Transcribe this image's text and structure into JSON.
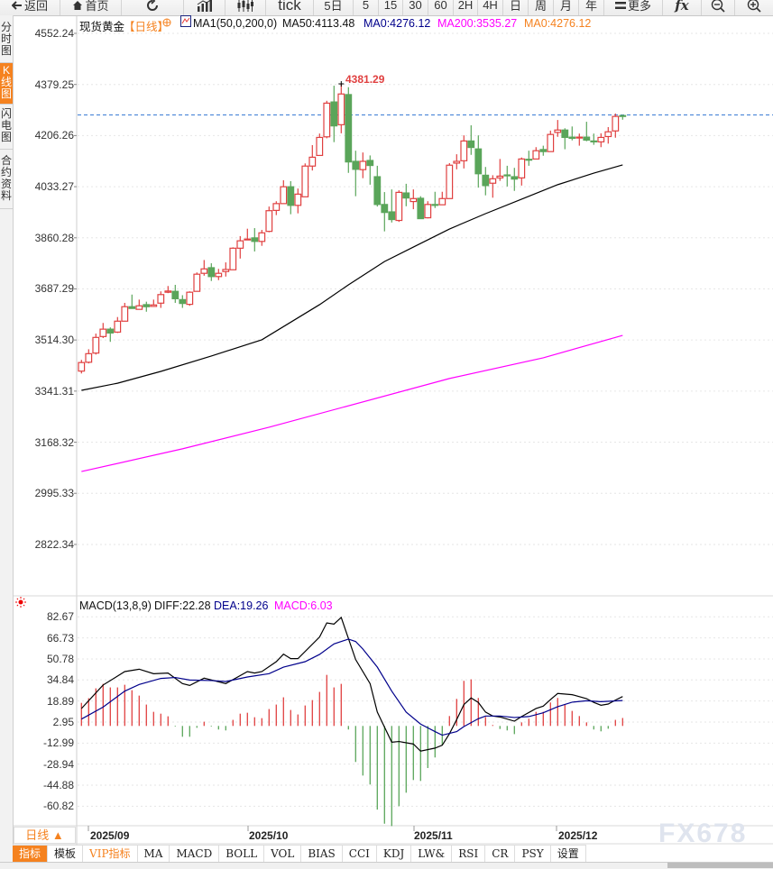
{
  "toolbar": {
    "back": "返回",
    "home": "首页",
    "tick": "tick",
    "periods": [
      "5日",
      "5",
      "15",
      "30",
      "60",
      "2H",
      "4H",
      "日",
      "周",
      "月",
      "年"
    ],
    "more": "更多",
    "fx": "fx"
  },
  "sidebar": [
    "分时图",
    "K线图",
    "闪电图",
    "合约资料"
  ],
  "header": {
    "symbol": "现货黄金",
    "period": "【日线】",
    "ma_params": "MA1(50,0,200,0)",
    "ma50": "MA50:4113.48",
    "ma0_a": "MA0:4276.12",
    "ma200": "MA200:3535.27",
    "ma0_b": "MA0:4276.12"
  },
  "max_label": "4381.29",
  "price_axis": [
    "4552.24",
    "4379.25",
    "4206.26",
    "4033.27",
    "3860.28",
    "3687.29",
    "3514.30",
    "3341.31",
    "3168.32",
    "2995.33",
    "2822.34"
  ],
  "macd_header": {
    "params": "MACD(13,8,9)",
    "diff": "DIFF:22.28",
    "dea": "DEA:19.26",
    "macd": "MACD:6.03"
  },
  "macd_axis": [
    "82.67",
    "66.73",
    "50.78",
    "34.84",
    "18.89",
    "2.95",
    "-12.99",
    "-28.94",
    "-44.88",
    "-60.82"
  ],
  "date_axis": [
    "2025/09",
    "2025/10",
    "2025/11",
    "2025/12"
  ],
  "period_selector": "日线 ▲",
  "tabs": [
    "指标",
    "模板",
    "VIP指标",
    "MA",
    "MACD",
    "BOLL",
    "VOL",
    "BIAS",
    "CCI",
    "KDJ",
    "LW&",
    "RSI",
    "CR",
    "PSY",
    "设置"
  ],
  "watermark": "FX678",
  "colors": {
    "up": "#e04040",
    "down": "#5aa55a",
    "ma50": "#000000",
    "ma200": "#ff00ff",
    "dea": "#00008b",
    "accent": "#f5821f",
    "last_price_line": "#3a7bd5"
  },
  "chart_data": [
    {
      "type": "candlestick",
      "ylim": [
        2822.34,
        4552.24
      ],
      "last_price": 4276.12,
      "candles_ohlc": [
        [
          3409,
          3447,
          3401,
          3438
        ],
        [
          3439,
          3483,
          3435,
          3468
        ],
        [
          3470,
          3536,
          3465,
          3523
        ],
        [
          3526,
          3572,
          3521,
          3551
        ],
        [
          3551,
          3557,
          3508,
          3538
        ],
        [
          3541,
          3592,
          3538,
          3578
        ],
        [
          3578,
          3640,
          3578,
          3627
        ],
        [
          3627,
          3668,
          3621,
          3621
        ],
        [
          3618,
          3651,
          3618,
          3630
        ],
        [
          3634,
          3644,
          3610,
          3627
        ],
        [
          3628,
          3651,
          3628,
          3633
        ],
        [
          3639,
          3679,
          3623,
          3668
        ],
        [
          3676,
          3697,
          3673,
          3680
        ],
        [
          3679,
          3701,
          3640,
          3654
        ],
        [
          3651,
          3666,
          3623,
          3638
        ],
        [
          3635,
          3679,
          3630,
          3676
        ],
        [
          3679,
          3743,
          3679,
          3737
        ],
        [
          3740,
          3785,
          3732,
          3755
        ],
        [
          3759,
          3774,
          3714,
          3729
        ],
        [
          3729,
          3755,
          3717,
          3740
        ],
        [
          3746,
          3777,
          3729,
          3753
        ],
        [
          3752,
          3828,
          3752,
          3825
        ],
        [
          3825,
          3866,
          3790,
          3850
        ],
        [
          3853,
          3891,
          3853,
          3856
        ],
        [
          3860,
          3893,
          3814,
          3848
        ],
        [
          3848,
          3887,
          3833,
          3877
        ],
        [
          3882,
          3966,
          3879,
          3952
        ],
        [
          3953,
          3984,
          3937,
          3976
        ],
        [
          3976,
          4055,
          3976,
          4033
        ],
        [
          4033,
          4052,
          3940,
          3970
        ],
        [
          3970,
          4027,
          3943,
          4008
        ],
        [
          3999,
          4112,
          3999,
          4103
        ],
        [
          4103,
          4174,
          4088,
          4133
        ],
        [
          4139,
          4213,
          4139,
          4200
        ],
        [
          4202,
          4324,
          4197,
          4316
        ],
        [
          4320,
          4375,
          4184,
          4239
        ],
        [
          4243,
          4381.29,
          4214,
          4347
        ],
        [
          4345,
          4370,
          4080,
          4117
        ],
        [
          4119,
          4155,
          4001,
          4092
        ],
        [
          4091,
          4149,
          4062,
          4119
        ],
        [
          4122,
          4139,
          4040,
          4105
        ],
        [
          4067,
          4104,
          3966,
          3973
        ],
        [
          3973,
          4015,
          3882,
          3946
        ],
        [
          3948,
          4024,
          3912,
          3922
        ],
        [
          3919,
          4021,
          3914,
          4014
        ],
        [
          4012,
          4043,
          3967,
          3995
        ],
        [
          3983,
          4024,
          3957,
          3993
        ],
        [
          3994,
          4001,
          3925,
          3925
        ],
        [
          3928,
          3984,
          3926,
          3973
        ],
        [
          3973,
          4016,
          3961,
          3972
        ],
        [
          3972,
          4016,
          3972,
          3993
        ],
        [
          3993,
          4113,
          3993,
          4106
        ],
        [
          4113,
          4143,
          4092,
          4119
        ],
        [
          4121,
          4207,
          4095,
          4188
        ],
        [
          4188,
          4241,
          4141,
          4166
        ],
        [
          4161,
          4207,
          4030,
          4077
        ],
        [
          4072,
          4100,
          4004,
          4037
        ],
        [
          4045,
          4072,
          3996,
          4060
        ],
        [
          4063,
          4127,
          4053,
          4069
        ],
        [
          4073,
          4104,
          4034,
          4071
        ],
        [
          4067,
          4097,
          4019,
          4059
        ],
        [
          4063,
          4132,
          4037,
          4127
        ],
        [
          4126,
          4155,
          4104,
          4124
        ],
        [
          4127,
          4167,
          4127,
          4155
        ],
        [
          4159,
          4172,
          4138,
          4152
        ],
        [
          4152,
          4223,
          4152,
          4210
        ],
        [
          4217,
          4259,
          4202,
          4225
        ],
        [
          4225,
          4231,
          4160,
          4200
        ],
        [
          4201,
          4237,
          4190,
          4197
        ],
        [
          4198,
          4213,
          4172,
          4201
        ],
        [
          4201,
          4253,
          4187,
          4191
        ],
        [
          4188,
          4213,
          4175,
          4185
        ],
        [
          4185,
          4214,
          4167,
          4200
        ],
        [
          4203,
          4235,
          4179,
          4219
        ],
        [
          4222,
          4281,
          4199,
          4271
        ],
        [
          4274,
          4277,
          4260,
          4272
        ]
      ],
      "series": [
        {
          "name": "MA50",
          "points": [
            [
              1,
              3344
            ],
            [
              6,
              3368
            ],
            [
              12,
              3408
            ],
            [
              19,
              3460
            ],
            [
              26,
              3515
            ],
            [
              34,
              3634
            ],
            [
              38,
              3701
            ],
            [
              43,
              3780
            ],
            [
              47,
              3829
            ],
            [
              52,
              3890
            ],
            [
              57,
              3942
            ],
            [
              62,
              3991
            ],
            [
              67,
              4040
            ],
            [
              72,
              4079
            ],
            [
              76,
              4107
            ]
          ]
        },
        {
          "name": "MA200",
          "points": [
            [
              1,
              3069
            ],
            [
              15,
              3146
            ],
            [
              27,
              3219
            ],
            [
              52,
              3384
            ],
            [
              65,
              3454
            ],
            [
              76,
              3530
            ]
          ]
        }
      ]
    },
    {
      "type": "bar+line",
      "title": "MACD(13,8,9)",
      "ylim": [
        -75.9,
        82.67
      ],
      "macd_bars": [
        17.5,
        21.0,
        28.5,
        31.9,
        29.2,
        29.2,
        31.2,
        27.1,
        23.0,
        16.2,
        10.7,
        9.3,
        7.3,
        -0.5,
        -8.2,
        -8.2,
        -1.4,
        3.2,
        -0.5,
        -2.7,
        -3.4,
        4.6,
        9.3,
        10.0,
        6.6,
        5.9,
        12.8,
        16.2,
        21.7,
        12.1,
        8.7,
        15.5,
        19.6,
        25.8,
        38.7,
        29.2,
        31.9,
        -2.7,
        -27.3,
        -37.6,
        -44.4,
        -63.4,
        -74.1,
        -75.9,
        -60.8,
        -50.6,
        -41.0,
        -41.7,
        -31.9,
        -23.9,
        -14.8,
        7.5,
        20.5,
        34.2,
        35.3,
        21.2,
        6.8,
        0.7,
        -2.3,
        -3.4,
        -6.2,
        2.7,
        5.5,
        10.7,
        10.7,
        17.8,
        21.2,
        16.4,
        11.4,
        7.5,
        2.7,
        -2.7,
        -4.1,
        -2.1,
        4.6,
        6.03
      ],
      "series": [
        {
          "name": "DIFF",
          "points": [
            [
              1,
              13.2
            ],
            [
              4,
              31.0
            ],
            [
              7,
              41.2
            ],
            [
              9,
              43.0
            ],
            [
              11,
              39.6
            ],
            [
              13,
              40.1
            ],
            [
              15,
              32.1
            ],
            [
              16,
              30.7
            ],
            [
              18,
              36.2
            ],
            [
              21,
              32.1
            ],
            [
              24,
              41.2
            ],
            [
              25,
              40.1
            ],
            [
              26,
              41.2
            ],
            [
              28,
              48.7
            ],
            [
              29,
              54.4
            ],
            [
              30,
              51.0
            ],
            [
              31,
              51.0
            ],
            [
              34,
              67.4
            ],
            [
              35,
              78.1
            ],
            [
              36,
              77.2
            ],
            [
              37,
              82.2
            ],
            [
              39,
              50.3
            ],
            [
              41,
              32.1
            ],
            [
              42,
              10.5
            ],
            [
              43,
              -0.9
            ],
            [
              44,
              -12.3
            ],
            [
              45,
              -11.8
            ],
            [
              47,
              -13.7
            ],
            [
              48,
              -19.1
            ],
            [
              50,
              -16.8
            ],
            [
              51,
              -14.6
            ],
            [
              52,
              -5.9
            ],
            [
              53,
              4.8
            ],
            [
              54,
              16.2
            ],
            [
              55,
              21.2
            ],
            [
              56,
              17.8
            ],
            [
              57,
              10.5
            ],
            [
              58,
              7.5
            ],
            [
              59,
              6.8
            ],
            [
              61,
              3.6
            ],
            [
              62,
              7.1
            ],
            [
              64,
              13.2
            ],
            [
              65,
              15.0
            ],
            [
              66,
              20.0
            ],
            [
              67,
              24.6
            ],
            [
              69,
              23.7
            ],
            [
              71,
              20.7
            ],
            [
              72,
              17.8
            ],
            [
              73,
              15.7
            ],
            [
              74,
              16.6
            ],
            [
              75,
              19.6
            ],
            [
              76,
              22.28
            ]
          ]
        },
        {
          "name": "DEA",
          "points": [
            [
              1,
              5.2
            ],
            [
              4,
              14.3
            ],
            [
              7,
              26.4
            ],
            [
              9,
              31.4
            ],
            [
              12,
              36.0
            ],
            [
              14,
              36.7
            ],
            [
              16,
              34.8
            ],
            [
              19,
              34.4
            ],
            [
              21,
              33.7
            ],
            [
              24,
              37.1
            ],
            [
              27,
              39.6
            ],
            [
              29,
              44.6
            ],
            [
              32,
              48.7
            ],
            [
              34,
              54.2
            ],
            [
              36,
              62.2
            ],
            [
              38,
              65.8
            ],
            [
              39,
              64.0
            ],
            [
              40,
              58.3
            ],
            [
              42,
              44.6
            ],
            [
              44,
              26.4
            ],
            [
              46,
              10.5
            ],
            [
              48,
              1.4
            ],
            [
              50,
              -4.3
            ],
            [
              51,
              -7.0
            ],
            [
              53,
              -4.3
            ],
            [
              54,
              -0.5
            ],
            [
              56,
              5.5
            ],
            [
              57,
              7.5
            ],
            [
              59,
              7.5
            ],
            [
              61,
              6.4
            ],
            [
              63,
              7.1
            ],
            [
              65,
              10.0
            ],
            [
              67,
              14.6
            ],
            [
              69,
              18.0
            ],
            [
              71,
              19.1
            ],
            [
              73,
              18.4
            ],
            [
              76,
              19.26
            ]
          ]
        }
      ]
    }
  ]
}
